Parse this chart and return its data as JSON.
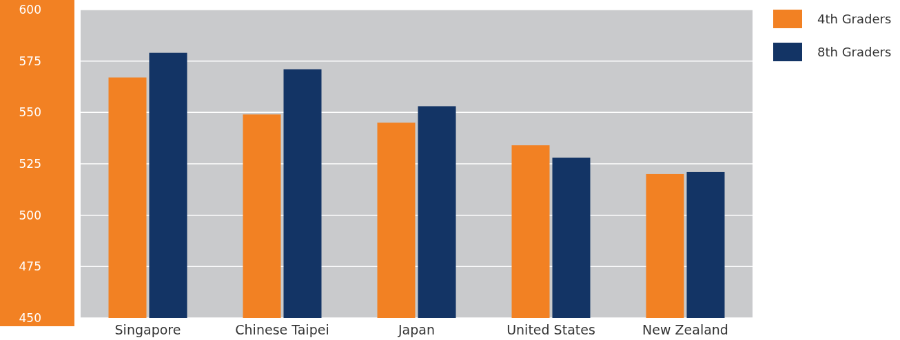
{
  "chart_data": {
    "type": "bar",
    "categories": [
      "Singapore",
      "Chinese Taipei",
      "Japan",
      "United States",
      "New Zealand"
    ],
    "series": [
      {
        "name": "4th Graders",
        "color": "#f28123",
        "values": [
          567,
          549,
          545,
          534,
          520
        ]
      },
      {
        "name": "8th Graders",
        "color": "#133465",
        "values": [
          579,
          571,
          553,
          528,
          521
        ]
      }
    ],
    "ylim": [
      450,
      600
    ],
    "yticks": [
      450,
      475,
      500,
      525,
      550,
      575,
      600
    ],
    "grid": "y",
    "legend": "top right"
  }
}
